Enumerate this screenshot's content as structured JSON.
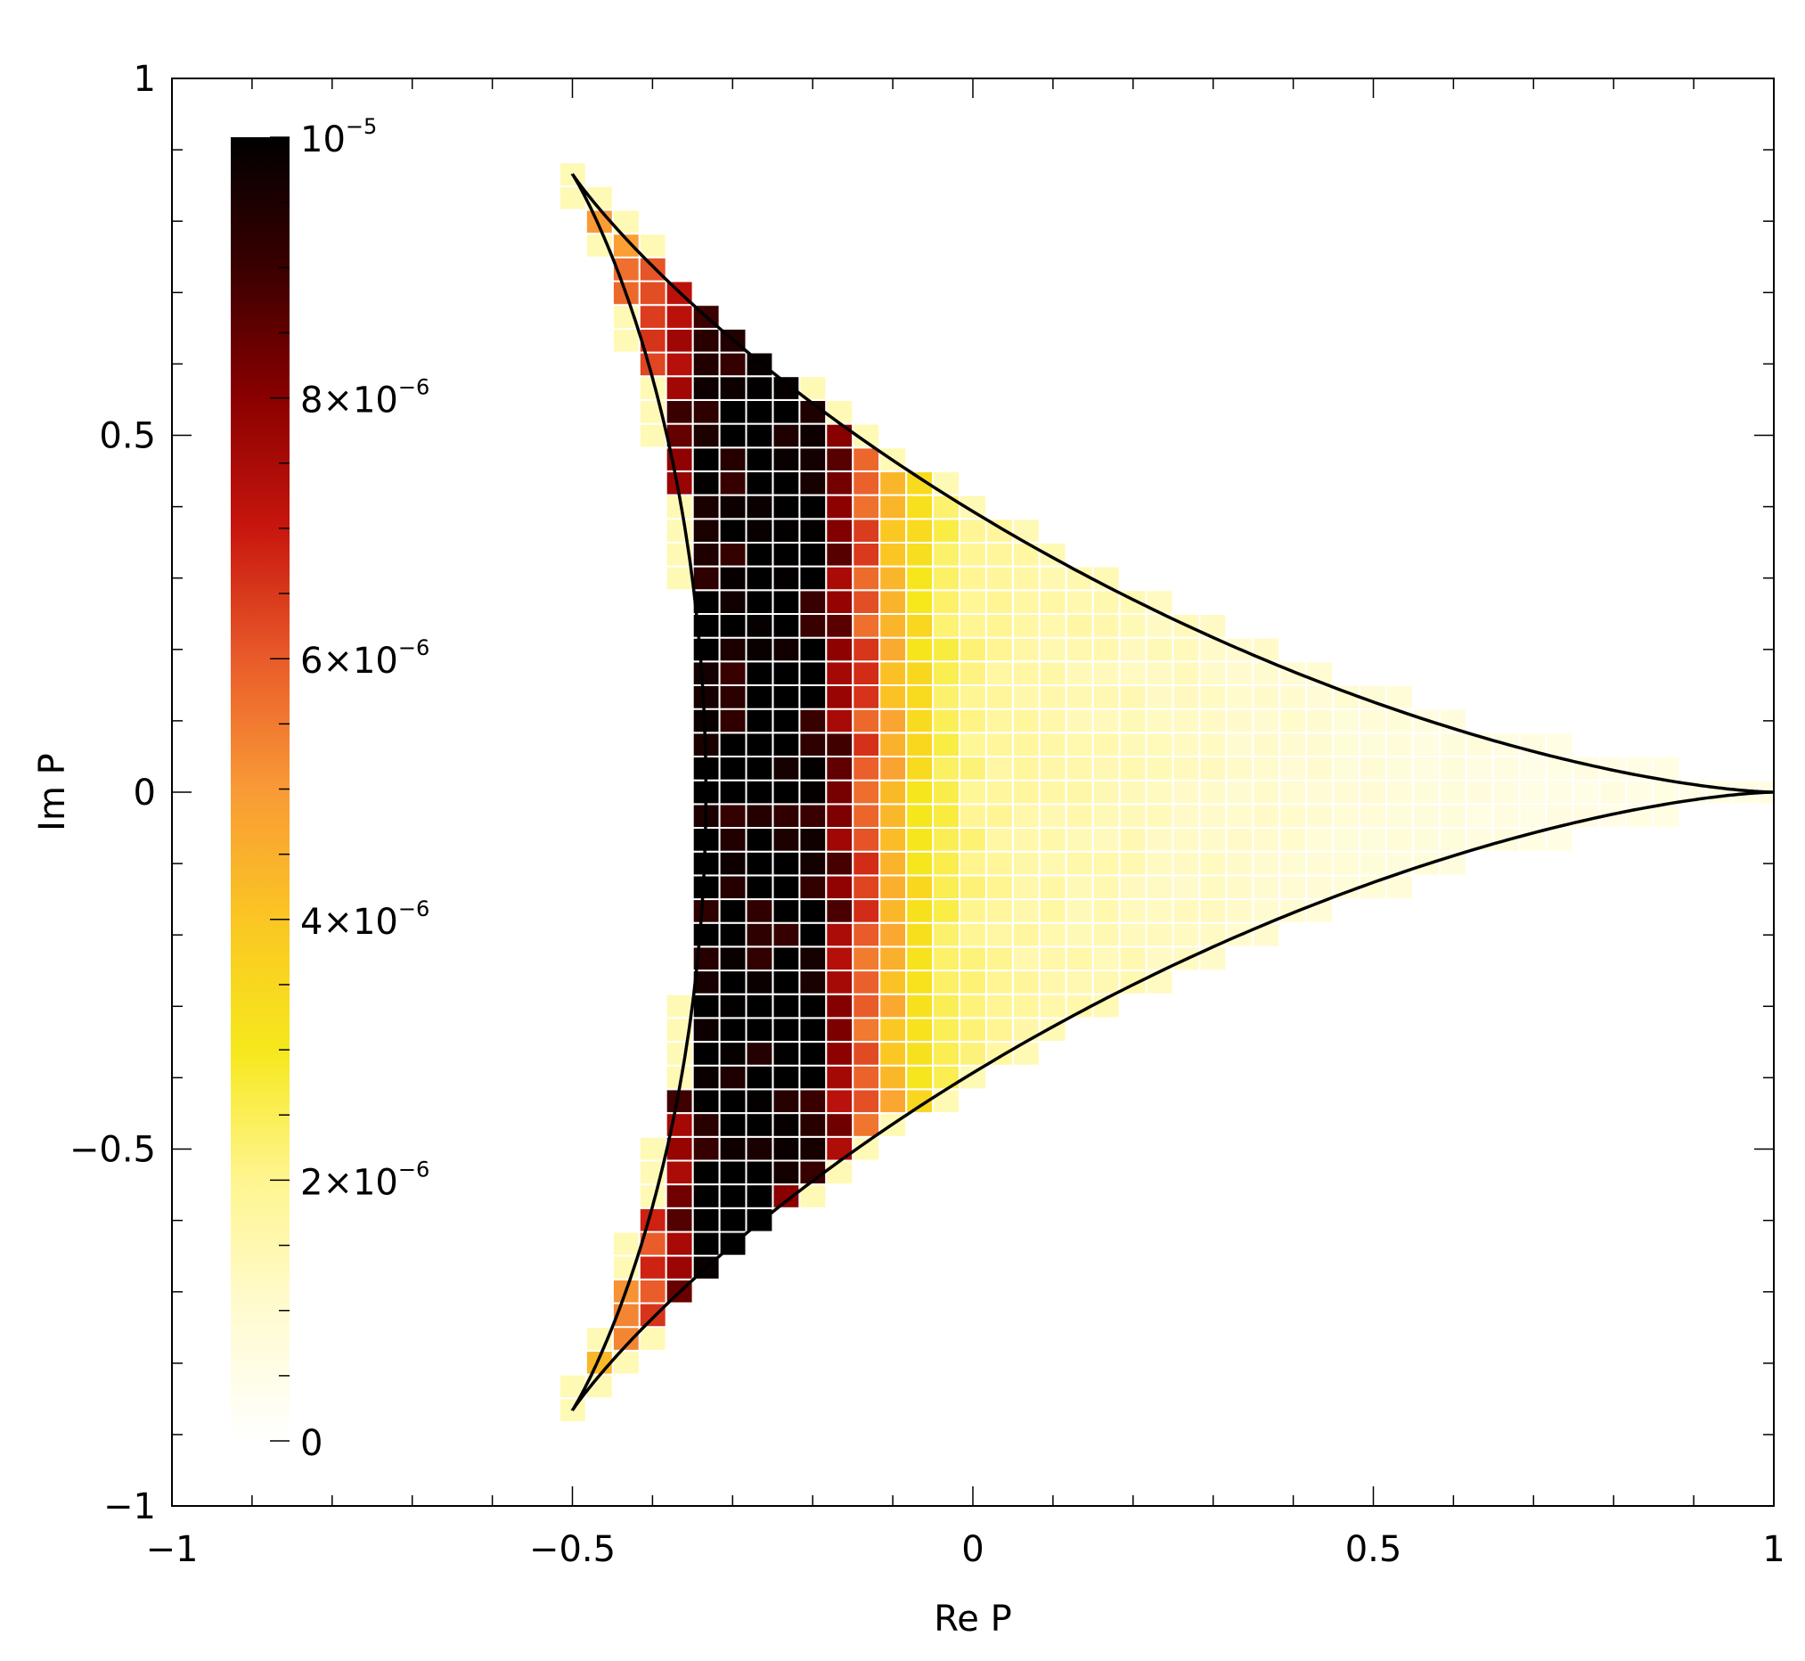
{
  "chart_data": {
    "type": "heatmap",
    "title": "",
    "xlabel": "Re P",
    "ylabel": "Im P",
    "xlim": [
      -1,
      1
    ],
    "ylim": [
      -1,
      1
    ],
    "x_ticks": [
      {
        "value": -1,
        "label": "−1"
      },
      {
        "value": -0.5,
        "label": "−0.5"
      },
      {
        "value": 0,
        "label": "0"
      },
      {
        "value": 0.5,
        "label": "0.5"
      },
      {
        "value": 1,
        "label": "1"
      }
    ],
    "y_ticks": [
      {
        "value": 1,
        "label": "1"
      },
      {
        "value": 0.5,
        "label": "0.5"
      },
      {
        "value": 0,
        "label": "0"
      },
      {
        "value": -0.5,
        "label": "−0.5"
      },
      {
        "value": -1,
        "label": "−1"
      }
    ],
    "cell_size": 0.0333,
    "value_range": [
      0,
      1e-05
    ],
    "boundary": "three-cusped hypocycloid (deltoid) with cusps at (1,0), (-0.5,0.866), (-0.5,-0.866)",
    "colorbar": {
      "placement": "left-inside",
      "range": [
        0,
        1e-05
      ],
      "colors": [
        "#ffffff",
        "#fffbd0",
        "#fff590",
        "#f6e81c",
        "#fbc623",
        "#f99a36",
        "#e95b2a",
        "#c8160e",
        "#8a0000",
        "#3a0000",
        "#000000"
      ],
      "ticks": [
        {
          "value": 0,
          "mant": "0",
          "exp": ""
        },
        {
          "value": 2e-06,
          "mant": "2×10",
          "exp": "−6"
        },
        {
          "value": 4e-06,
          "mant": "4×10",
          "exp": "−6"
        },
        {
          "value": 6e-06,
          "mant": "6×10",
          "exp": "−6"
        },
        {
          "value": 8e-06,
          "mant": "8×10",
          "exp": "−6"
        },
        {
          "value": 1e-05,
          "mant": "10",
          "exp": "−5"
        }
      ]
    },
    "hot_cells": [
      {
        "x": -0.283,
        "y": 0.183,
        "v": 1e-05
      },
      {
        "x": -0.283,
        "y": 0.117,
        "v": 1e-05
      },
      {
        "x": -0.283,
        "y": -0.05,
        "v": 1e-05
      },
      {
        "x": -0.25,
        "y": -0.083,
        "v": 1e-05
      },
      {
        "x": -0.283,
        "y": -0.117,
        "v": 1e-05
      },
      {
        "x": -0.317,
        "y": 0.483,
        "v": 9.5e-06
      },
      {
        "x": -0.35,
        "y": 0.517,
        "v": 9e-06
      },
      {
        "x": -0.317,
        "y": -0.283,
        "v": 9.6e-06
      },
      {
        "x": -0.317,
        "y": -0.45,
        "v": 9.3e-06
      },
      {
        "x": -0.217,
        "y": 0.017,
        "v": 9.6e-06
      },
      {
        "x": -0.217,
        "y": -0.05,
        "v": 9.5e-06
      },
      {
        "x": -0.217,
        "y": -0.55,
        "v": 8e-06
      },
      {
        "x": -0.317,
        "y": 0.3,
        "v": 9.2e-06
      },
      {
        "x": -0.317,
        "y": -0.183,
        "v": 9.2e-06
      }
    ]
  }
}
